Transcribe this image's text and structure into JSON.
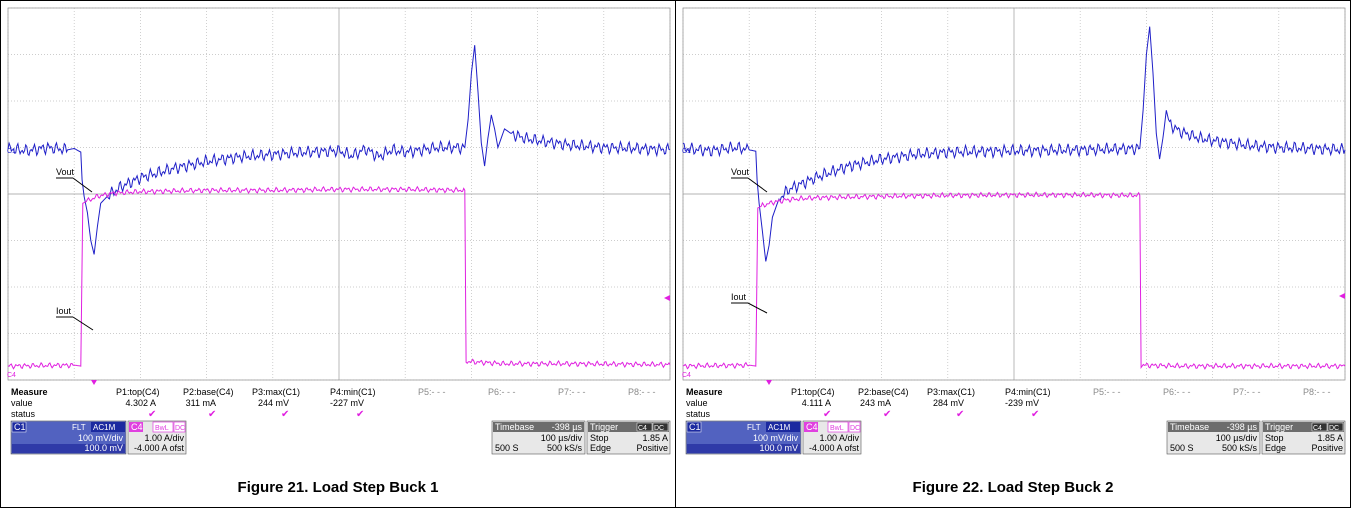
{
  "colors": {
    "c1": "#1f1fc8",
    "c4": "#e020e0",
    "grid": "#bdbdbd",
    "panel_bg": "#e9e9e9",
    "c1_badge": "#2233cc",
    "c4_badge": "#e040e0"
  },
  "panels": [
    {
      "caption": "Figure 21. Load Step Buck 1",
      "trace_labels": {
        "vout": "Vout",
        "iout": "Iout",
        "c1": "C1",
        "c4": "C4"
      },
      "measure": {
        "header": "Measure",
        "value_label": "value",
        "status_label": "status",
        "params": [
          {
            "name": "P1:top(C4)",
            "value": "4.302 A",
            "check": "✔"
          },
          {
            "name": "P2:base(C4)",
            "value": "311 mA",
            "check": "✔"
          },
          {
            "name": "P3:max(C1)",
            "value": "244 mV",
            "check": "✔"
          },
          {
            "name": "P4:min(C1)",
            "value": "-227 mV",
            "check": "✔"
          },
          {
            "name": "P5:- - -",
            "value": "",
            "check": ""
          },
          {
            "name": "P6:- - -",
            "value": "",
            "check": ""
          },
          {
            "name": "P7:- - -",
            "value": "",
            "check": ""
          },
          {
            "name": "P8:- - -",
            "value": "",
            "check": ""
          }
        ]
      },
      "c1_box": {
        "tag": "C1",
        "mode1": "FLT",
        "mode2": "AC1M",
        "scale": "100 mV/div",
        "offset": "100.0 mV"
      },
      "c4_box": {
        "tag": "C4",
        "mode1": "BwL",
        "mode2": "DC",
        "scale": "1.00 A/div",
        "offset": "-4.000 A ofst"
      },
      "timebase": {
        "label": "Timebase",
        "delay": "-398 µs",
        "rate_div": "100 µs/div",
        "samples": "500 S",
        "sample_rate": "500 kS/s"
      },
      "trigger": {
        "label": "Trigger",
        "src": "C4",
        "coupling": "DC",
        "mode": "Stop",
        "level": "1.85 A",
        "type": "Edge",
        "slope": "Positive"
      },
      "chart_data": {
        "type": "line",
        "xlabel": "",
        "ylabel": "",
        "grid": true,
        "xlim": [
          0,
          10
        ],
        "ylim": [
          0,
          8
        ],
        "series": [
          {
            "values": [
              [
                0,
                4.97
              ],
              [
                0.3,
                4.93
              ],
              [
                0.6,
                5.0
              ],
              [
                0.9,
                4.95
              ],
              [
                1.0,
                4.98
              ],
              [
                1.1,
                4.9
              ],
              [
                1.12,
                4.3
              ],
              [
                1.15,
                3.95
              ],
              [
                1.2,
                3.6
              ],
              [
                1.25,
                3.0
              ],
              [
                1.3,
                2.7
              ],
              [
                1.35,
                3.3
              ],
              [
                1.4,
                3.8
              ],
              [
                1.5,
                3.95
              ],
              [
                1.7,
                4.15
              ],
              [
                2.0,
                4.35
              ],
              [
                2.5,
                4.55
              ],
              [
                3.0,
                4.7
              ],
              [
                3.5,
                4.8
              ],
              [
                4.0,
                4.85
              ],
              [
                4.5,
                4.9
              ],
              [
                5.0,
                4.93
              ],
              [
                5.2,
                4.82
              ],
              [
                5.4,
                4.97
              ],
              [
                5.6,
                4.8
              ],
              [
                5.8,
                4.95
              ],
              [
                6.0,
                4.9
              ],
              [
                6.5,
                5.0
              ],
              [
                6.9,
                5.0
              ],
              [
                6.95,
                5.6
              ],
              [
                7.0,
                6.6
              ],
              [
                7.05,
                7.2
              ],
              [
                7.1,
                6.2
              ],
              [
                7.15,
                5.1
              ],
              [
                7.2,
                4.6
              ],
              [
                7.25,
                5.2
              ],
              [
                7.3,
                5.7
              ],
              [
                7.35,
                5.4
              ],
              [
                7.4,
                5.0
              ],
              [
                7.5,
                5.4
              ],
              [
                7.6,
                5.3
              ],
              [
                7.8,
                5.2
              ],
              [
                8.0,
                5.15
              ],
              [
                8.5,
                5.05
              ],
              [
                9.0,
                5.0
              ],
              [
                9.5,
                4.98
              ],
              [
                10.0,
                4.95
              ]
            ]
          },
          {
            "values": [
              [
                0,
                0.3
              ],
              [
                1.0,
                0.32
              ],
              [
                1.1,
                0.3
              ],
              [
                1.13,
                3.8
              ],
              [
                1.2,
                3.85
              ],
              [
                1.35,
                3.95
              ],
              [
                1.6,
                4.02
              ],
              [
                2.0,
                4.05
              ],
              [
                3.0,
                4.08
              ],
              [
                4.0,
                4.08
              ],
              [
                5.0,
                4.1
              ],
              [
                6.0,
                4.1
              ],
              [
                6.9,
                4.08
              ],
              [
                6.92,
                0.4
              ],
              [
                7.5,
                0.35
              ],
              [
                8.5,
                0.35
              ],
              [
                10.0,
                0.33
              ]
            ]
          }
        ]
      }
    },
    {
      "caption": "Figure 22. Load Step Buck 2",
      "trace_labels": {
        "vout": "Vout",
        "iout": "Iout",
        "c1": "C1",
        "c4": "C4"
      },
      "measure": {
        "header": "Measure",
        "value_label": "value",
        "status_label": "status",
        "params": [
          {
            "name": "P1:top(C4)",
            "value": "4.111 A",
            "check": "✔"
          },
          {
            "name": "P2:base(C4)",
            "value": "243 mA",
            "check": "✔"
          },
          {
            "name": "P3:max(C1)",
            "value": "284 mV",
            "check": "✔"
          },
          {
            "name": "P4:min(C1)",
            "value": "-239 mV",
            "check": "✔"
          },
          {
            "name": "P5:- - -",
            "value": "",
            "check": ""
          },
          {
            "name": "P6:- - -",
            "value": "",
            "check": ""
          },
          {
            "name": "P7:- - -",
            "value": "",
            "check": ""
          },
          {
            "name": "P8:- - -",
            "value": "",
            "check": ""
          }
        ]
      },
      "c1_box": {
        "tag": "C1",
        "mode1": "FLT",
        "mode2": "AC1M",
        "scale": "100 mV/div",
        "offset": "100.0 mV"
      },
      "c4_box": {
        "tag": "C4",
        "mode1": "BwL",
        "mode2": "DC",
        "scale": "1.00 A/div",
        "offset": "-4.000 A ofst"
      },
      "timebase": {
        "label": "Timebase",
        "delay": "-398 µs",
        "rate_div": "100 µs/div",
        "samples": "500 S",
        "sample_rate": "500 kS/s"
      },
      "trigger": {
        "label": "Trigger",
        "src": "C4",
        "coupling": "DC",
        "mode": "Stop",
        "level": "1.85 A",
        "type": "Edge",
        "slope": "Positive"
      },
      "chart_data": {
        "type": "line",
        "xlabel": "",
        "ylabel": "",
        "grid": true,
        "xlim": [
          0,
          10
        ],
        "ylim": [
          0,
          8
        ],
        "series": [
          {
            "values": [
              [
                0,
                4.98
              ],
              [
                0.4,
                4.93
              ],
              [
                0.8,
                5.0
              ],
              [
                1.0,
                4.95
              ],
              [
                1.1,
                4.92
              ],
              [
                1.12,
                4.3
              ],
              [
                1.15,
                3.8
              ],
              [
                1.2,
                3.2
              ],
              [
                1.25,
                2.55
              ],
              [
                1.3,
                2.9
              ],
              [
                1.35,
                3.5
              ],
              [
                1.45,
                3.9
              ],
              [
                1.6,
                4.1
              ],
              [
                2.0,
                4.35
              ],
              [
                2.5,
                4.6
              ],
              [
                3.0,
                4.75
              ],
              [
                3.5,
                4.85
              ],
              [
                4.0,
                4.9
              ],
              [
                5.0,
                4.93
              ],
              [
                6.0,
                4.95
              ],
              [
                6.9,
                4.98
              ],
              [
                6.95,
                5.8
              ],
              [
                7.0,
                7.0
              ],
              [
                7.05,
                7.6
              ],
              [
                7.1,
                6.6
              ],
              [
                7.15,
                5.3
              ],
              [
                7.2,
                4.75
              ],
              [
                7.25,
                5.2
              ],
              [
                7.3,
                5.8
              ],
              [
                7.35,
                5.5
              ],
              [
                7.5,
                5.35
              ],
              [
                7.8,
                5.2
              ],
              [
                8.0,
                5.15
              ],
              [
                8.5,
                5.05
              ],
              [
                9.0,
                5.0
              ],
              [
                9.5,
                4.98
              ],
              [
                10.0,
                4.95
              ]
            ]
          },
          {
            "values": [
              [
                0,
                0.3
              ],
              [
                1.0,
                0.32
              ],
              [
                1.1,
                0.3
              ],
              [
                1.13,
                3.7
              ],
              [
                1.2,
                3.75
              ],
              [
                1.35,
                3.82
              ],
              [
                1.6,
                3.88
              ],
              [
                2.0,
                3.92
              ],
              [
                3.0,
                3.95
              ],
              [
                4.0,
                3.97
              ],
              [
                5.0,
                3.98
              ],
              [
                6.0,
                3.98
              ],
              [
                6.9,
                3.97
              ],
              [
                6.92,
                0.32
              ],
              [
                7.5,
                0.3
              ],
              [
                8.5,
                0.3
              ],
              [
                10.0,
                0.3
              ]
            ]
          }
        ]
      }
    }
  ]
}
